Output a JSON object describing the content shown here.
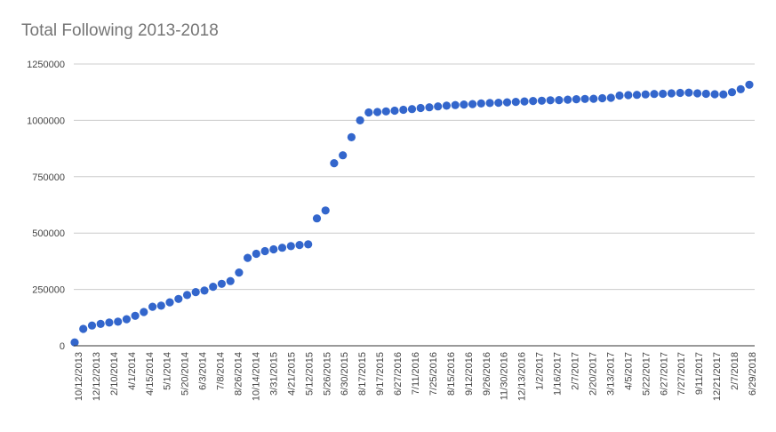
{
  "chart_data": {
    "type": "scatter",
    "title": "Total Following 2013-2018",
    "xlabel": "",
    "ylabel": "",
    "ylim": [
      0,
      1250000
    ],
    "y_ticks": [
      "0",
      "250000",
      "500000",
      "750000",
      "1000000",
      "1250000"
    ],
    "grid": true,
    "legend": "none",
    "point_color": "#3366cc",
    "x_tick_labels": [
      "10/12/2013",
      "12/12/2013",
      "2/10/2014",
      "4/1/2014",
      "4/15/2014",
      "5/1/2014",
      "5/20/2014",
      "6/3/2014",
      "7/8/2014",
      "8/26/2014",
      "10/14/2014",
      "3/31/2015",
      "4/21/2015",
      "5/12/2015",
      "5/26/2015",
      "6/30/2015",
      "8/17/2015",
      "9/17/2015",
      "6/27/2016",
      "7/11/2016",
      "7/25/2016",
      "8/15/2016",
      "9/12/2016",
      "9/26/2016",
      "11/30/2016",
      "12/13/2016",
      "1/2/2017",
      "1/16/2017",
      "2/7/2017",
      "2/20/2017",
      "3/13/2017",
      "4/5/2017",
      "5/22/2017",
      "6/27/2017",
      "7/27/2017",
      "9/11/2017",
      "12/21/2017",
      "2/7/2018",
      "6/29/2018"
    ],
    "values": [
      15000,
      75000,
      90000,
      97000,
      103000,
      107000,
      118000,
      133000,
      150000,
      173000,
      178000,
      193000,
      208000,
      225000,
      238000,
      245000,
      262000,
      275000,
      287000,
      325000,
      390000,
      408000,
      420000,
      428000,
      435000,
      442000,
      447000,
      450000,
      565000,
      600000,
      810000,
      845000,
      925000,
      1000000,
      1035000,
      1037000,
      1040000,
      1043000,
      1047000,
      1050000,
      1055000,
      1058000,
      1062000,
      1065000,
      1068000,
      1070000,
      1072000,
      1075000,
      1077000,
      1078000,
      1080000,
      1082000,
      1084000,
      1086000,
      1087000,
      1089000,
      1090000,
      1092000,
      1094000,
      1095000,
      1096000,
      1098000,
      1100000,
      1110000,
      1112000,
      1113000,
      1115000,
      1117000,
      1118000,
      1120000,
      1122000,
      1123000,
      1120000,
      1118000,
      1116000,
      1115000,
      1125000,
      1138000,
      1158000
    ]
  }
}
